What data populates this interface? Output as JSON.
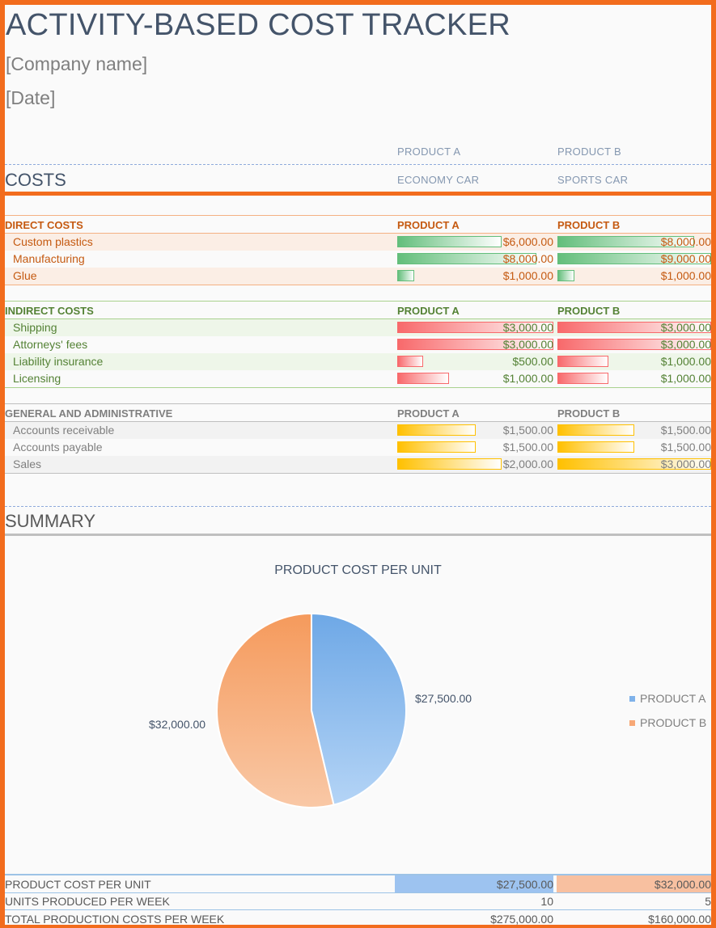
{
  "header": {
    "title": "ACTIVITY-BASED COST TRACKER",
    "company": "[Company name]",
    "date": "[Date]"
  },
  "costs_header": {
    "label": "COSTS",
    "product_a": "PRODUCT A",
    "product_b": "PRODUCT B",
    "product_a_desc": "ECONOMY CAR",
    "product_b_desc": "SPORTS CAR"
  },
  "direct": {
    "title": "DIRECT COSTS",
    "col_a": "PRODUCT A",
    "col_b": "PRODUCT B",
    "color": "#c55a11",
    "bar_color": "#63be7b",
    "rows": [
      {
        "label": "Custom plastics",
        "a": "$6,000.00",
        "b": "$8,000.00",
        "a_val": 6000,
        "b_val": 8000
      },
      {
        "label": "Manufacturing",
        "a": "$8,000.00",
        "b": "$9,000.00",
        "a_val": 8000,
        "b_val": 9000
      },
      {
        "label": "Glue",
        "a": "$1,000.00",
        "b": "$1,000.00",
        "a_val": 1000,
        "b_val": 1000
      }
    ]
  },
  "indirect": {
    "title": "INDIRECT COSTS",
    "col_a": "PRODUCT A",
    "col_b": "PRODUCT B",
    "color": "#548235",
    "bar_color": "#f8696b",
    "rows": [
      {
        "label": "Shipping",
        "a": "$3,000.00",
        "b": "$3,000.00",
        "a_val": 3000,
        "b_val": 3000
      },
      {
        "label": "Attorneys' fees",
        "a": "$3,000.00",
        "b": "$3,000.00",
        "a_val": 3000,
        "b_val": 3000
      },
      {
        "label": "Liability insurance",
        "a": "$500.00",
        "b": "$1,000.00",
        "a_val": 500,
        "b_val": 1000
      },
      {
        "label": "Licensing",
        "a": "$1,000.00",
        "b": "$1,000.00",
        "a_val": 1000,
        "b_val": 1000
      }
    ]
  },
  "ga": {
    "title": "GENERAL AND ADMINISTRATIVE",
    "col_a": "PRODUCT A",
    "col_b": "PRODUCT B",
    "color": "#7f7f7f",
    "bar_color": "#ffc000",
    "rows": [
      {
        "label": "Accounts receivable",
        "a": "$1,500.00",
        "b": "$1,500.00",
        "a_val": 1500,
        "b_val": 1500
      },
      {
        "label": "Accounts payable",
        "a": "$1,500.00",
        "b": "$1,500.00",
        "a_val": 1500,
        "b_val": 1500
      },
      {
        "label": "Sales",
        "a": "$2,000.00",
        "b": "$3,000.00",
        "a_val": 2000,
        "b_val": 3000
      }
    ]
  },
  "summary": {
    "label": "SUMMARY",
    "rows": [
      {
        "label": "PRODUCT COST PER UNIT",
        "a": "$27,500.00",
        "b": "$32,000.00"
      },
      {
        "label": "UNITS PRODUCED PER WEEK",
        "a": "10",
        "b": "5"
      },
      {
        "label": "TOTAL PRODUCTION COSTS PER WEEK",
        "a": "$275,000.00",
        "b": "$160,000.00"
      }
    ]
  },
  "chart_data": {
    "type": "pie",
    "title": "PRODUCT COST PER UNIT",
    "categories": [
      "PRODUCT A",
      "PRODUCT B"
    ],
    "values": [
      27500,
      32000
    ],
    "data_labels": [
      "$27,500.00",
      "$32,000.00"
    ],
    "colors": [
      "#7fb2ea",
      "#f7a876"
    ],
    "legend_position": "right"
  },
  "colors": {
    "accent": "#f26c1d",
    "title": "#44546a",
    "product_a": "#9dc3f0",
    "product_b": "#f8c0a0"
  }
}
